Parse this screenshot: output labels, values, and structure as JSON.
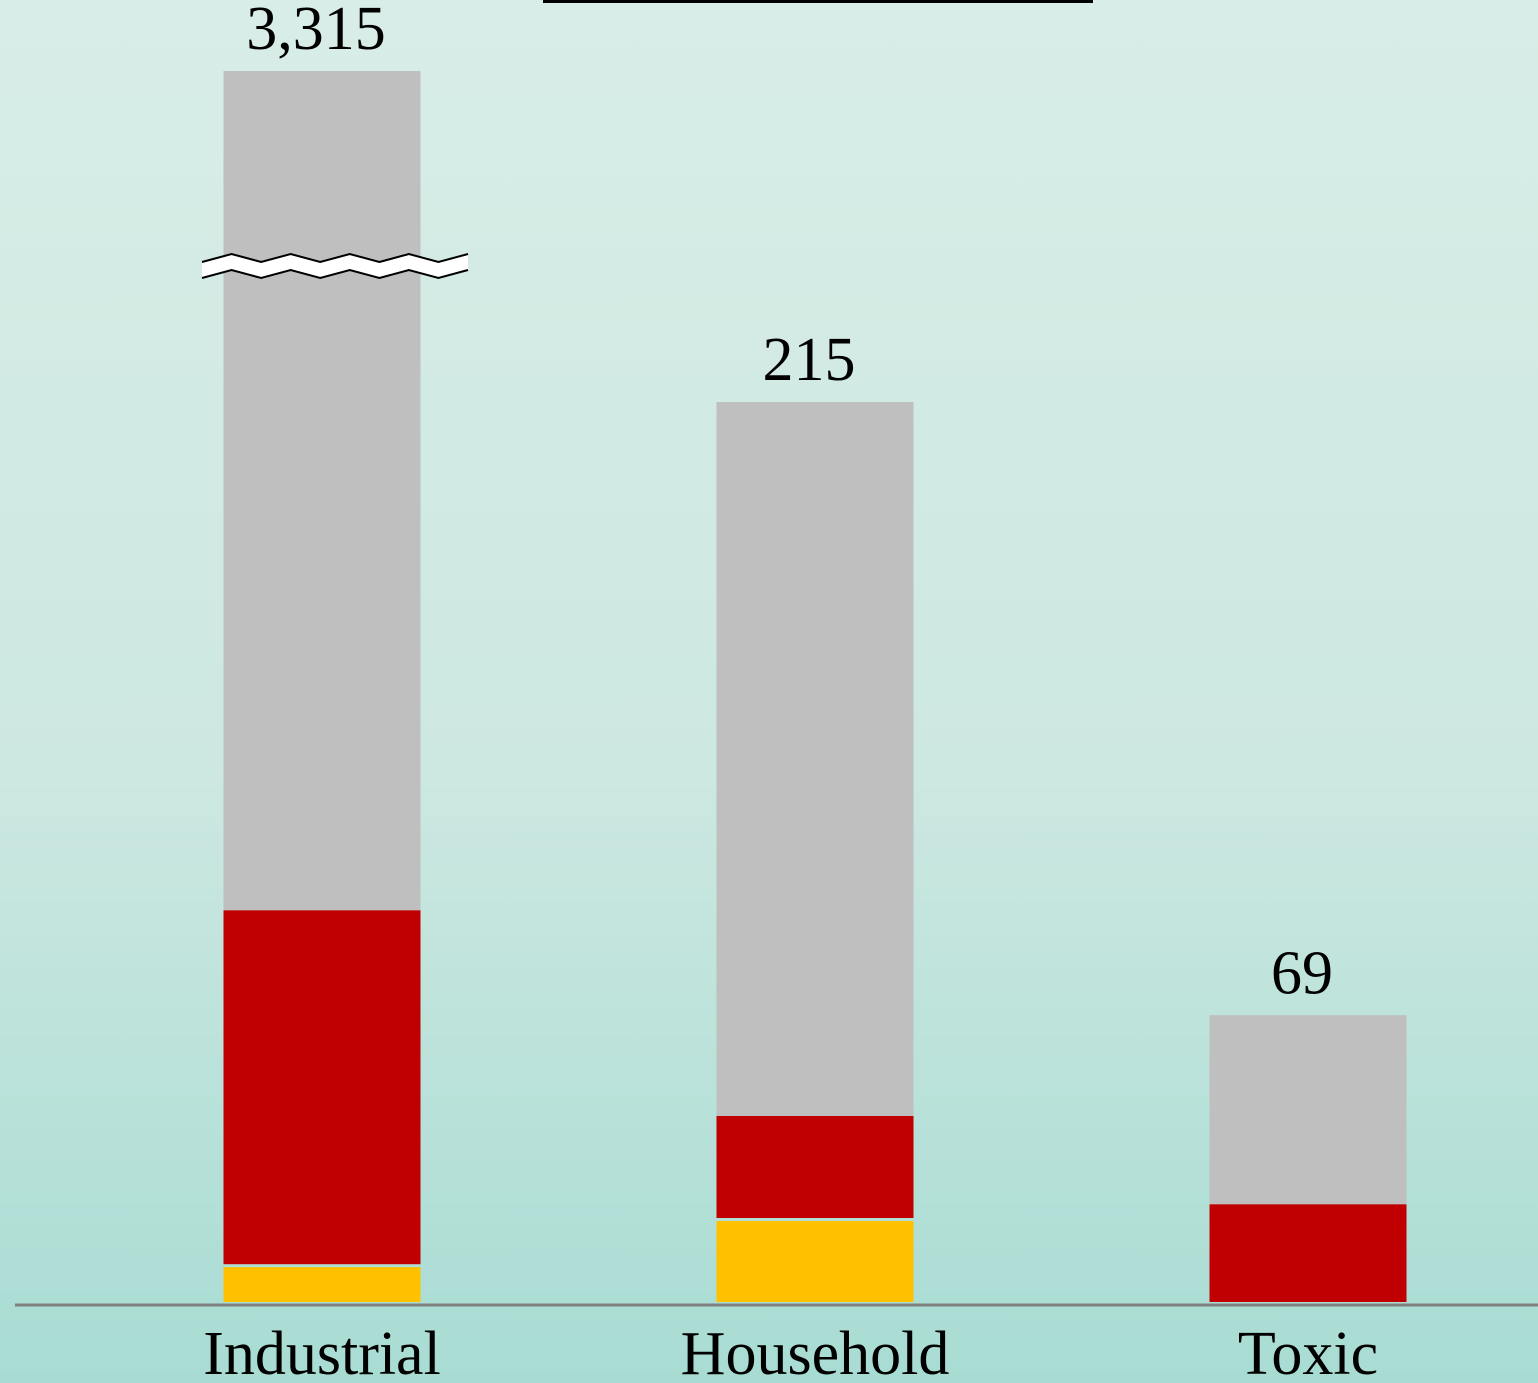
{
  "chart_data": {
    "type": "stacked_bar",
    "categories": [
      "Industrial",
      "Household",
      "Toxic"
    ],
    "series": [
      {
        "color": "#ffc000",
        "values": [
          9,
          20,
          0
        ]
      },
      {
        "color": "#c00000",
        "values": [
          85,
          25,
          24
        ]
      },
      {
        "color": "#bfbfbf",
        "values": [
          3221,
          170,
          45
        ]
      }
    ],
    "totals": [
      3315,
      215,
      69
    ],
    "total_labels": [
      "3,315",
      "215",
      "69"
    ],
    "ylim": [
      0,
      310
    ],
    "axis_break": true
  }
}
